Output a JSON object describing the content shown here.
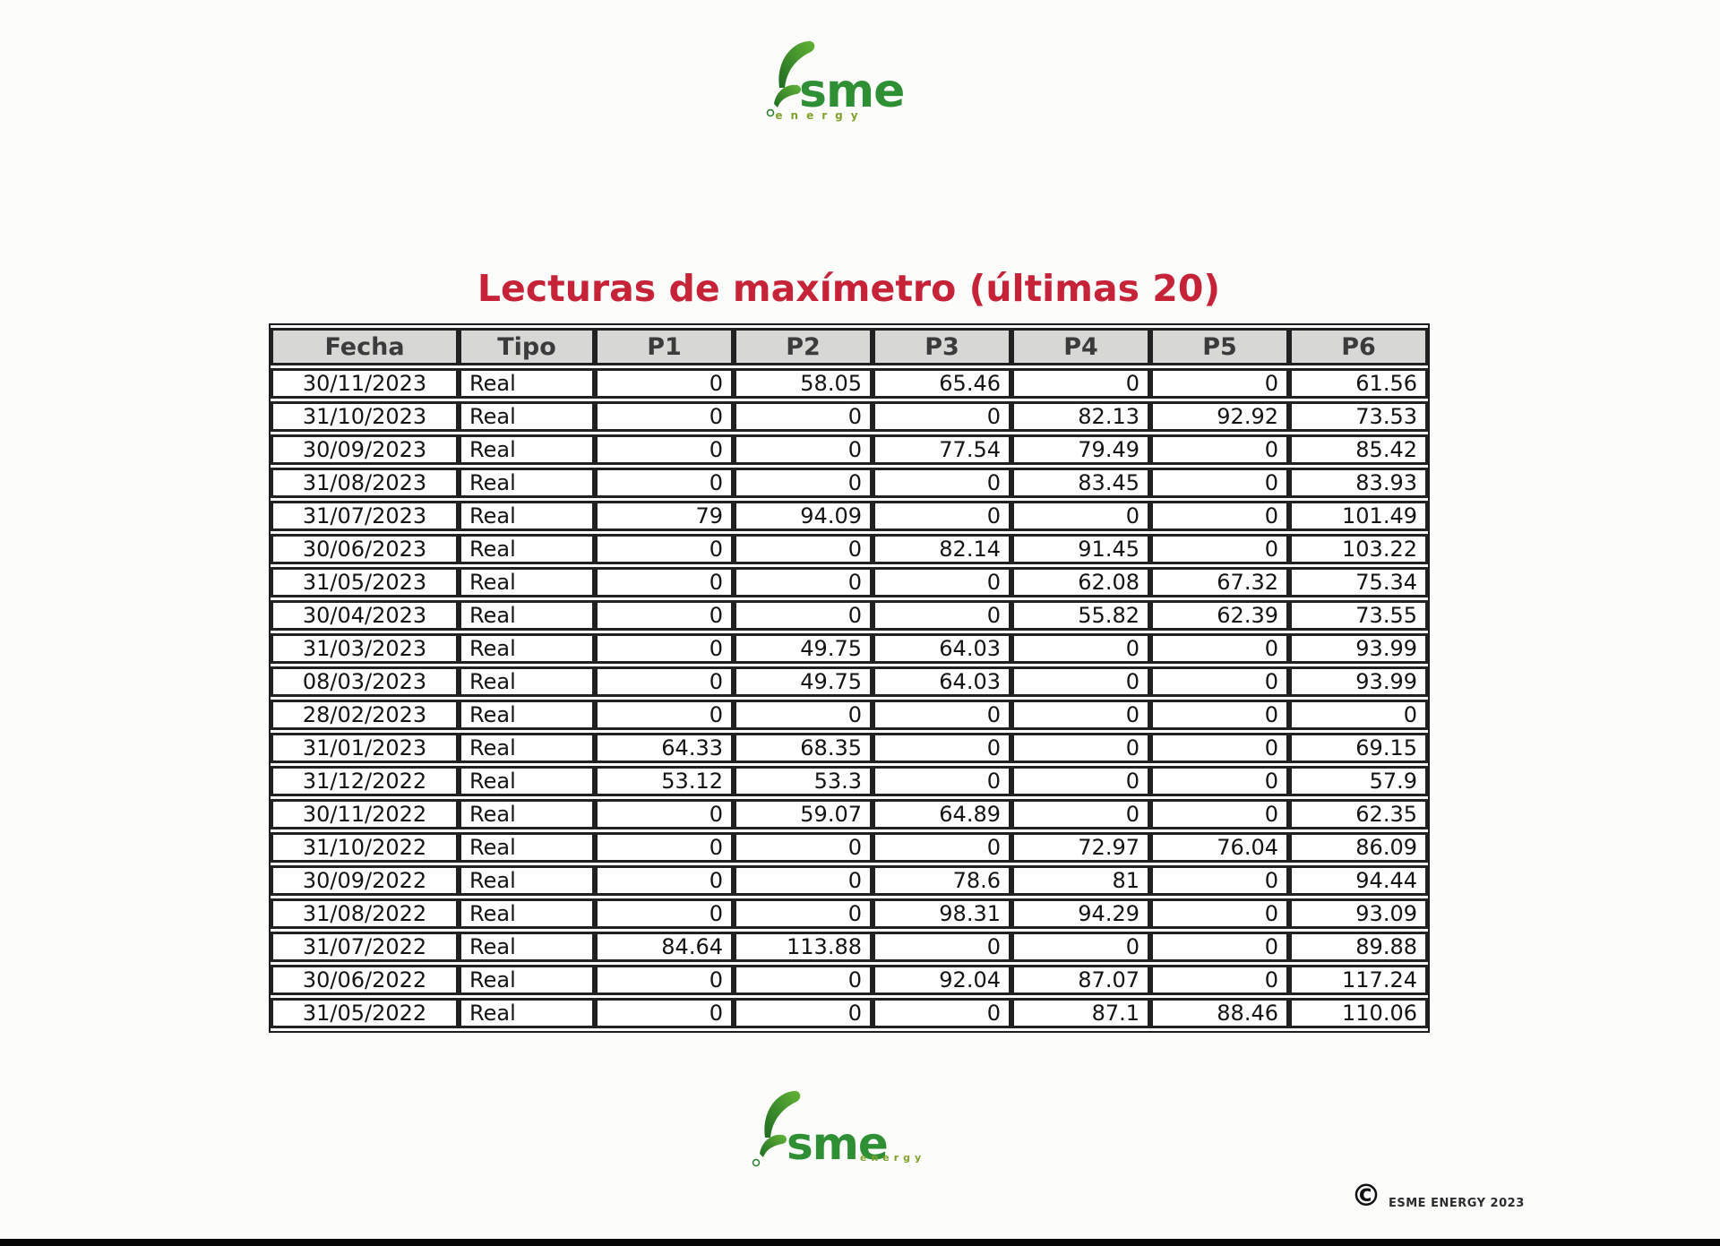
{
  "page": {
    "title": "Lecturas de maxímetro (últimas 20)",
    "title_color": "#c62339",
    "copyright_symbol": "©",
    "copyright_text": "ESME ENERGY 2023"
  },
  "logo": {
    "text": "sme",
    "subtext": "energy",
    "green": "#2f8f35",
    "light_green": "#6cbf3a"
  },
  "table": {
    "headers": [
      "Fecha",
      "Tipo",
      "P1",
      "P2",
      "P3",
      "P4",
      "P5",
      "P6"
    ],
    "rows": [
      [
        "30/11/2023",
        "Real",
        "0",
        "58.05",
        "65.46",
        "0",
        "0",
        "61.56"
      ],
      [
        "31/10/2023",
        "Real",
        "0",
        "0",
        "0",
        "82.13",
        "92.92",
        "73.53"
      ],
      [
        "30/09/2023",
        "Real",
        "0",
        "0",
        "77.54",
        "79.49",
        "0",
        "85.42"
      ],
      [
        "31/08/2023",
        "Real",
        "0",
        "0",
        "0",
        "83.45",
        "0",
        "83.93"
      ],
      [
        "31/07/2023",
        "Real",
        "79",
        "94.09",
        "0",
        "0",
        "0",
        "101.49"
      ],
      [
        "30/06/2023",
        "Real",
        "0",
        "0",
        "82.14",
        "91.45",
        "0",
        "103.22"
      ],
      [
        "31/05/2023",
        "Real",
        "0",
        "0",
        "0",
        "62.08",
        "67.32",
        "75.34"
      ],
      [
        "30/04/2023",
        "Real",
        "0",
        "0",
        "0",
        "55.82",
        "62.39",
        "73.55"
      ],
      [
        "31/03/2023",
        "Real",
        "0",
        "49.75",
        "64.03",
        "0",
        "0",
        "93.99"
      ],
      [
        "08/03/2023",
        "Real",
        "0",
        "49.75",
        "64.03",
        "0",
        "0",
        "93.99"
      ],
      [
        "28/02/2023",
        "Real",
        "0",
        "0",
        "0",
        "0",
        "0",
        "0"
      ],
      [
        "31/01/2023",
        "Real",
        "64.33",
        "68.35",
        "0",
        "0",
        "0",
        "69.15"
      ],
      [
        "31/12/2022",
        "Real",
        "53.12",
        "53.3",
        "0",
        "0",
        "0",
        "57.9"
      ],
      [
        "30/11/2022",
        "Real",
        "0",
        "59.07",
        "64.89",
        "0",
        "0",
        "62.35"
      ],
      [
        "31/10/2022",
        "Real",
        "0",
        "0",
        "0",
        "72.97",
        "76.04",
        "86.09"
      ],
      [
        "30/09/2022",
        "Real",
        "0",
        "0",
        "78.6",
        "81",
        "0",
        "94.44"
      ],
      [
        "31/08/2022",
        "Real",
        "0",
        "0",
        "98.31",
        "94.29",
        "0",
        "93.09"
      ],
      [
        "31/07/2022",
        "Real",
        "84.64",
        "113.88",
        "0",
        "0",
        "0",
        "89.88"
      ],
      [
        "30/06/2022",
        "Real",
        "0",
        "0",
        "92.04",
        "87.07",
        "0",
        "117.24"
      ],
      [
        "31/05/2022",
        "Real",
        "0",
        "0",
        "0",
        "87.1",
        "88.46",
        "110.06"
      ]
    ]
  }
}
